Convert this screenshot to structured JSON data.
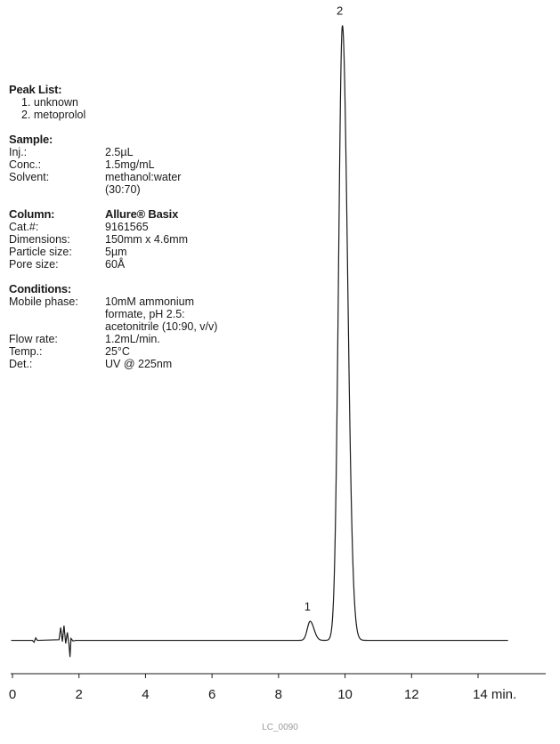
{
  "peak_list": {
    "title": "Peak List:",
    "items": [
      "1. unknown",
      "2. metoprolol"
    ]
  },
  "sample": {
    "title": "Sample:",
    "rows": [
      {
        "key": "Inj.:",
        "value": "2.5µL"
      },
      {
        "key": "Conc.:",
        "value": "1.5mg/mL"
      },
      {
        "key": "Solvent:",
        "value": "methanol:water"
      },
      {
        "key": "",
        "value": "(30:70)"
      }
    ]
  },
  "column": {
    "title": "Column:",
    "name": "Allure® Basix",
    "rows": [
      {
        "key": "Cat.#:",
        "value": "9161565"
      },
      {
        "key": "Dimensions:",
        "value": "150mm x 4.6mm"
      },
      {
        "key": "Particle size:",
        "value": "5µm"
      },
      {
        "key": "Pore size:",
        "value": "60Å"
      }
    ]
  },
  "conditions": {
    "title": "Conditions:",
    "rows": [
      {
        "key": "Mobile phase:",
        "value": "10mM ammonium"
      },
      {
        "key": "",
        "value": "formate, pH 2.5:"
      },
      {
        "key": "",
        "value": "acetonitrile (10:90, v/v)"
      },
      {
        "key": "Flow rate:",
        "value": "1.2mL/min."
      },
      {
        "key": "Temp.:",
        "value": "25°C"
      },
      {
        "key": "Det.:",
        "value": "UV @ 225nm"
      }
    ]
  },
  "footer": "LC_0090",
  "chart_data": {
    "type": "line",
    "x_unit_label": "min.",
    "xlim": [
      0,
      14.9
    ],
    "ylim": [
      0,
      100
    ],
    "x_ticks": [
      0,
      2,
      4,
      6,
      8,
      10,
      12,
      14
    ],
    "x_tick_labels": [
      "0",
      "2",
      "4",
      "6",
      "8",
      "10",
      "12",
      "14 min."
    ],
    "baseline": 0.5,
    "peaks": [
      {
        "label": "1",
        "rt": 8.95,
        "height": 3.1,
        "sigma": 0.085
      },
      {
        "label": "2",
        "rt": 9.92,
        "height": 100,
        "sigma": 0.115
      }
    ],
    "disturbance": [
      {
        "x": 0.6,
        "y": 0.5
      },
      {
        "x": 0.65,
        "y": 0.2
      },
      {
        "x": 0.7,
        "y": 0.9
      },
      {
        "x": 0.75,
        "y": 0.5
      },
      {
        "x": 1.4,
        "y": 0.6
      },
      {
        "x": 1.45,
        "y": 2.6
      },
      {
        "x": 1.5,
        "y": 0.3
      },
      {
        "x": 1.55,
        "y": 2.9
      },
      {
        "x": 1.6,
        "y": 0.0
      },
      {
        "x": 1.65,
        "y": 1.8
      },
      {
        "x": 1.7,
        "y": -0.2
      },
      {
        "x": 1.73,
        "y": -2.2
      },
      {
        "x": 1.76,
        "y": 0.8
      },
      {
        "x": 1.82,
        "y": 0.4
      },
      {
        "x": 1.9,
        "y": 0.5
      }
    ],
    "grid": false,
    "axes": {
      "y_axis": false
    }
  }
}
